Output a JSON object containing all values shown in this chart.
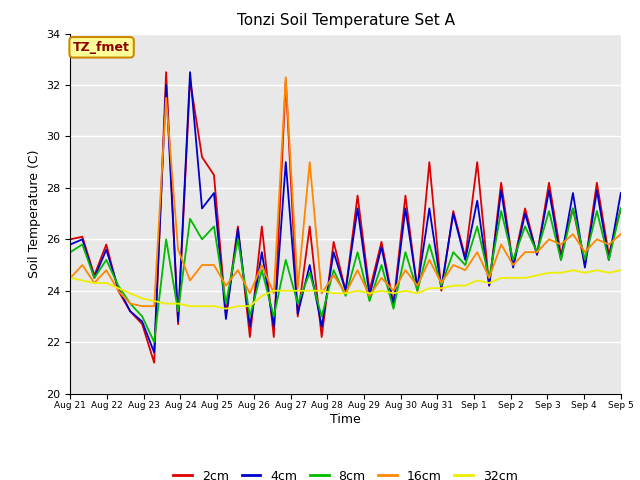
{
  "title": "Tonzi Soil Temperature Set A",
  "xlabel": "Time",
  "ylabel": "Soil Temperature (C)",
  "ylim": [
    20,
    34
  ],
  "yticks": [
    20,
    22,
    24,
    26,
    28,
    30,
    32,
    34
  ],
  "annotation_text": "TZ_fmet",
  "annotation_color": "#8b0000",
  "annotation_bg": "#ffff99",
  "annotation_border": "#cc8800",
  "series_order": [
    "2cm",
    "4cm",
    "8cm",
    "16cm",
    "32cm"
  ],
  "series": {
    "2cm": {
      "color": "#dd0000",
      "lw": 1.3
    },
    "4cm": {
      "color": "#0000cc",
      "lw": 1.3
    },
    "8cm": {
      "color": "#00bb00",
      "lw": 1.3
    },
    "16cm": {
      "color": "#ff8800",
      "lw": 1.3
    },
    "32cm": {
      "color": "#eeee00",
      "lw": 1.3
    }
  },
  "x_tick_labels": [
    "Aug 21",
    "Aug 22",
    "Aug 23",
    "Aug 24",
    "Aug 25",
    "Aug 26",
    "Aug 27",
    "Aug 28",
    "Aug 29",
    "Aug 30",
    "Aug 31",
    "Sep 1",
    "Sep 2",
    "Sep 3",
    "Sep 4",
    "Sep 5"
  ],
  "background_color": "#e8e8e8",
  "data": {
    "2cm": [
      26.0,
      26.1,
      24.6,
      25.8,
      24.0,
      23.2,
      22.7,
      21.2,
      32.5,
      22.7,
      32.2,
      29.2,
      28.5,
      23.1,
      26.5,
      22.2,
      26.5,
      22.2,
      32.2,
      23.0,
      26.5,
      22.2,
      25.9,
      24.0,
      27.7,
      24.0,
      25.9,
      23.5,
      27.7,
      24.0,
      29.0,
      24.0,
      27.1,
      25.3,
      29.0,
      24.2,
      28.2,
      25.0,
      27.2,
      25.4,
      28.2,
      25.4,
      27.2,
      25.0,
      28.2,
      25.4,
      27.2
    ],
    "4cm": [
      25.8,
      26.0,
      24.5,
      25.6,
      24.1,
      23.2,
      22.8,
      21.6,
      32.0,
      22.8,
      32.5,
      27.2,
      27.8,
      22.9,
      26.4,
      22.6,
      25.5,
      22.6,
      29.0,
      23.1,
      25.0,
      22.6,
      25.5,
      24.0,
      27.2,
      23.8,
      25.7,
      23.4,
      27.2,
      24.1,
      27.2,
      24.1,
      27.0,
      25.2,
      27.5,
      24.2,
      27.9,
      24.9,
      27.0,
      25.4,
      27.9,
      25.2,
      27.8,
      24.9,
      27.9,
      25.2,
      27.8
    ],
    "8cm": [
      25.5,
      25.8,
      24.5,
      25.2,
      24.2,
      23.5,
      23.0,
      22.0,
      26.0,
      23.2,
      26.8,
      26.0,
      26.5,
      23.5,
      26.0,
      23.0,
      24.8,
      23.0,
      25.2,
      23.5,
      24.7,
      23.0,
      24.8,
      23.8,
      25.5,
      23.6,
      25.0,
      23.3,
      25.5,
      24.0,
      25.8,
      24.2,
      25.5,
      25.0,
      26.5,
      24.5,
      27.1,
      25.2,
      26.5,
      25.5,
      27.1,
      25.2,
      27.2,
      25.2,
      27.1,
      25.2,
      27.2
    ],
    "16cm": [
      24.5,
      25.0,
      24.3,
      24.8,
      24.0,
      23.5,
      23.4,
      23.4,
      31.5,
      25.6,
      24.4,
      25.0,
      25.0,
      24.2,
      24.8,
      23.9,
      25.0,
      23.9,
      32.3,
      24.1,
      29.0,
      23.9,
      24.6,
      23.9,
      24.8,
      23.8,
      24.5,
      24.0,
      24.8,
      24.2,
      25.2,
      24.3,
      25.0,
      24.8,
      25.5,
      24.5,
      25.8,
      25.0,
      25.5,
      25.5,
      26.0,
      25.8,
      26.2,
      25.5,
      26.0,
      25.8,
      26.2
    ],
    "32cm": [
      24.5,
      24.4,
      24.3,
      24.3,
      24.1,
      23.9,
      23.7,
      23.6,
      23.5,
      23.5,
      23.4,
      23.4,
      23.4,
      23.3,
      23.4,
      23.4,
      23.8,
      24.0,
      24.0,
      24.0,
      24.0,
      24.0,
      23.9,
      23.9,
      24.0,
      23.9,
      24.0,
      23.9,
      24.0,
      23.9,
      24.1,
      24.1,
      24.2,
      24.2,
      24.4,
      24.3,
      24.5,
      24.5,
      24.5,
      24.6,
      24.7,
      24.7,
      24.8,
      24.7,
      24.8,
      24.7,
      24.8
    ]
  }
}
